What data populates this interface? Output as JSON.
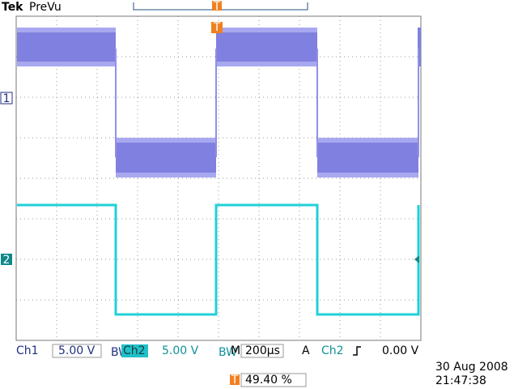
{
  "header": {
    "brand": "Tek",
    "mode": "PreVu"
  },
  "markers": {
    "ch1": "1",
    "ch2": "2",
    "trigger_top": "T",
    "trigger_bottom": "T"
  },
  "readout": {
    "ch1_label": "Ch1",
    "ch1_scale": "5.00 V",
    "ch1_bw": "BW",
    "ch2_label": "Ch2",
    "ch2_scale": "5.00 V",
    "ch2_bw": "BW",
    "time_label": "M",
    "time_scale": "200µs",
    "trigger_mode": "A",
    "trigger_source": "Ch2",
    "trigger_level": "0.00 V"
  },
  "footer": {
    "trigger_position": "49.40 %",
    "date": "30 Aug 2008",
    "time": "21:47:38"
  }
}
